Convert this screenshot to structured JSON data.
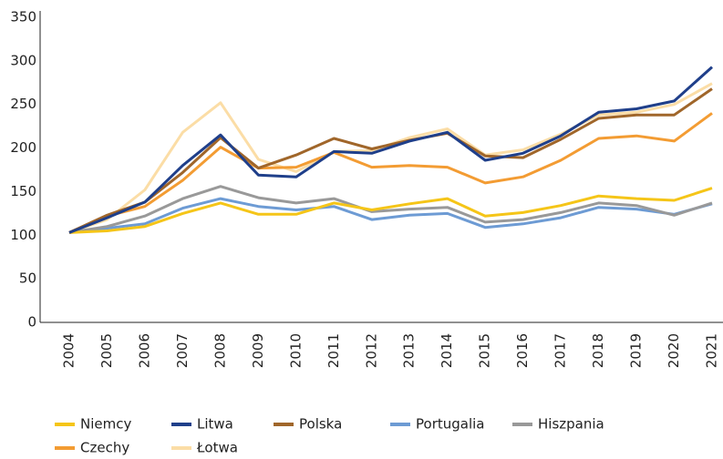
{
  "chart_data": {
    "type": "line",
    "categories": [
      "2004",
      "2005",
      "2006",
      "2007",
      "2008",
      "2009",
      "2010",
      "2011",
      "2012",
      "2013",
      "2014",
      "2015",
      "2016",
      "2017",
      "2018",
      "2019",
      "2020",
      "2021"
    ],
    "series": [
      {
        "name": "Niemcy",
        "color": "#f5c518",
        "values": [
          103,
          105,
          110,
          125,
          137,
          124,
          124,
          137,
          129,
          136,
          142,
          122,
          126,
          134,
          145,
          142,
          140,
          154
        ]
      },
      {
        "name": "Litwa",
        "color": "#1f3f8a",
        "values": [
          103,
          120,
          138,
          180,
          215,
          169,
          167,
          196,
          194,
          208,
          218,
          186,
          194,
          214,
          241,
          245,
          254,
          293
        ]
      },
      {
        "name": "Polska",
        "color": "#a0662a",
        "values": [
          103,
          123,
          138,
          172,
          212,
          177,
          192,
          211,
          199,
          209,
          217,
          191,
          189,
          210,
          234,
          238,
          238,
          268
        ]
      },
      {
        "name": "Portugalia",
        "color": "#6d9bd4",
        "values": [
          103,
          108,
          113,
          131,
          142,
          133,
          129,
          133,
          118,
          123,
          125,
          109,
          113,
          120,
          132,
          130,
          124,
          136
        ]
      },
      {
        "name": "Hiszpania",
        "color": "#999999",
        "values": [
          103,
          110,
          122,
          142,
          156,
          143,
          137,
          142,
          127,
          130,
          132,
          115,
          118,
          126,
          137,
          134,
          123,
          137
        ]
      },
      {
        "name": "Czechy",
        "color": "#f39c33",
        "values": [
          103,
          122,
          133,
          163,
          201,
          177,
          178,
          195,
          178,
          180,
          178,
          160,
          167,
          186,
          211,
          214,
          208,
          240
        ]
      },
      {
        "name": "Łotwa",
        "color": "#fbdda6",
        "values": [
          103,
          118,
          152,
          218,
          252,
          187,
          173,
          196,
          197,
          212,
          222,
          192,
          198,
          216,
          238,
          241,
          250,
          274
        ]
      }
    ],
    "ylim": [
      0,
      350
    ],
    "yticks": [
      0,
      50,
      100,
      150,
      200,
      250,
      300,
      350
    ],
    "grid": false
  }
}
